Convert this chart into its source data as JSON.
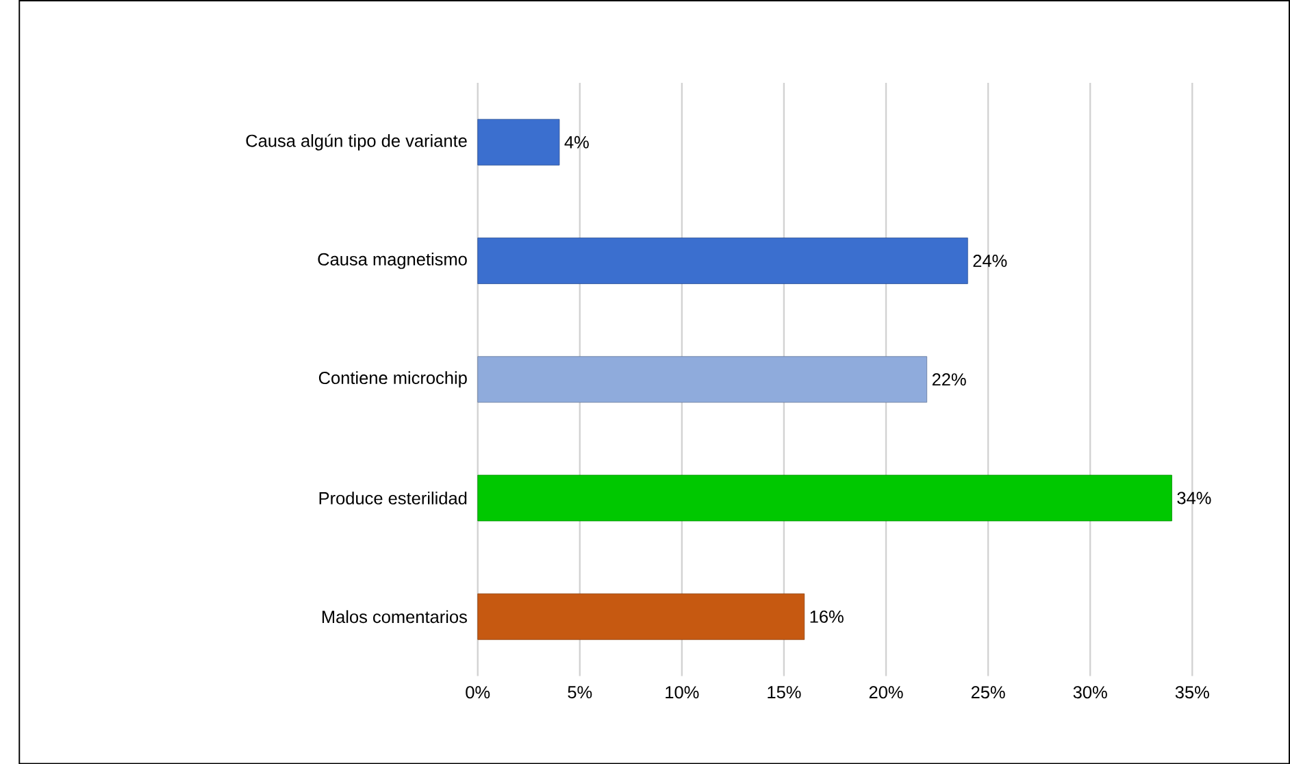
{
  "chart_data": {
    "type": "bar",
    "orientation": "horizontal",
    "categories": [
      "Causa algún tipo de variante",
      "Causa magnetismo",
      "Contiene microchip",
      "Produce esterilidad",
      "Malos comentarios"
    ],
    "values": [
      4,
      24,
      22,
      34,
      16
    ],
    "value_labels": [
      "4%",
      "24%",
      "22%",
      "34%",
      "16%"
    ],
    "colors": [
      "#3b6fcf",
      "#3b6fcf",
      "#8fabdc",
      "#00c800",
      "#c65911"
    ],
    "xlim": [
      0,
      35
    ],
    "xticks": [
      {
        "value": 0,
        "label": "0%"
      },
      {
        "value": 5,
        "label": "5%"
      },
      {
        "value": 10,
        "label": "10%"
      },
      {
        "value": 15,
        "label": "15%"
      },
      {
        "value": 20,
        "label": "20%"
      },
      {
        "value": 25,
        "label": "25%"
      },
      {
        "value": 30,
        "label": "30%"
      },
      {
        "value": 35,
        "label": "35%"
      }
    ],
    "grid": "x"
  }
}
